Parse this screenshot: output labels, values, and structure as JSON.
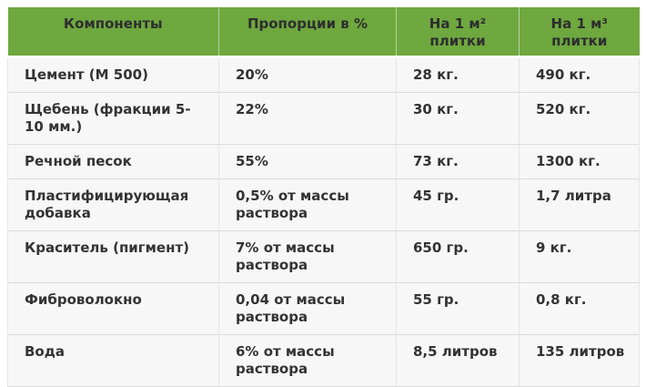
{
  "table": {
    "headers": [
      "Компоненты",
      "Пропорции в %",
      "На 1 м² плитки",
      "На 1 м³ плитки"
    ],
    "rows": [
      {
        "component": "Цемент (М 500)",
        "proportion": "20%",
        "per_m2": "28 кг.",
        "per_m3": "490 кг."
      },
      {
        "component": "Щебень (фракции 5-10 мм.)",
        "proportion": "22%",
        "per_m2": "30 кг.",
        "per_m3": "520 кг."
      },
      {
        "component": "Речной песок",
        "proportion": "55%",
        "per_m2": "73 кг.",
        "per_m3": "1300 кг."
      },
      {
        "component": "Пластифицирующая добавка",
        "proportion": "0,5% от массы раствора",
        "per_m2": "45 гр.",
        "per_m3": "1,7 литра"
      },
      {
        "component": "Краситель (пигмент)",
        "proportion": "7% от массы раствора",
        "per_m2": "650 гр.",
        "per_m3": "9 кг."
      },
      {
        "component": "Фиброволокно",
        "proportion": "0,04 от массы раствора",
        "per_m2": "55 гр.",
        "per_m3": "0,8 кг."
      },
      {
        "component": "Вода",
        "proportion": "6% от массы раствора",
        "per_m2": "8,5 литров",
        "per_m3": "135 литров"
      }
    ],
    "colors": {
      "header_bg": "#6EA83F",
      "header_text": "#2E2E2E",
      "row_bg": "#F7F7F7",
      "body_text": "#333333",
      "border": "#DBDBDB"
    }
  }
}
